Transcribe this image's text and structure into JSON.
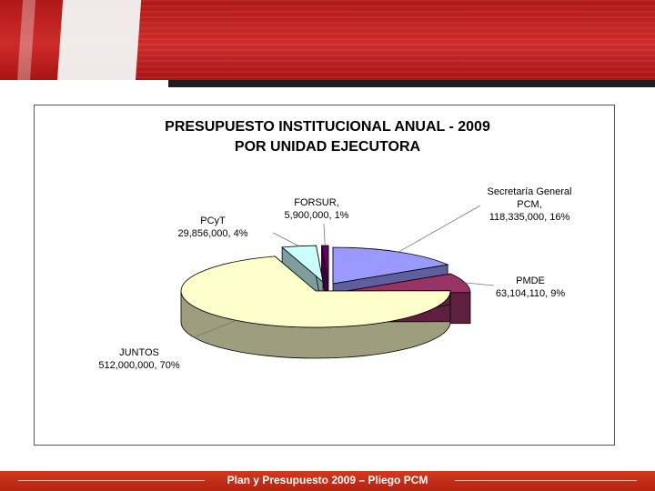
{
  "slide": {
    "footer_title": "Plan y Presupuesto 2009 – Pliego PCM"
  },
  "chart_data": {
    "type": "pie",
    "title": "PRESUPUESTO INSTITUCIONAL ANUAL - 2009",
    "subtitle": "POR UNIDAD EJECUTORA",
    "exploded": true,
    "three_d": true,
    "slices": [
      {
        "label_lines": [
          "Secretaría General",
          "PCM,",
          "118,335,000, 16%"
        ],
        "value": 118335000,
        "percent": 16,
        "color": "#9999ff"
      },
      {
        "label_lines": [
          "PMDE",
          "63,104,110, 9%"
        ],
        "value": 63104110,
        "percent": 9,
        "color": "#993366"
      },
      {
        "label_lines": [
          "JUNTOS",
          "512,000,000, 70%"
        ],
        "value": 512000000,
        "percent": 70,
        "color": "#ffffcc"
      },
      {
        "label_lines": [
          "PCyT",
          "29,856,000, 4%"
        ],
        "value": 29856000,
        "percent": 4,
        "color": "#ccffff"
      },
      {
        "label_lines": [
          "FORSUR,",
          "5,900,000, 1%"
        ],
        "value": 5900000,
        "percent": 1,
        "color": "#660066"
      }
    ]
  }
}
